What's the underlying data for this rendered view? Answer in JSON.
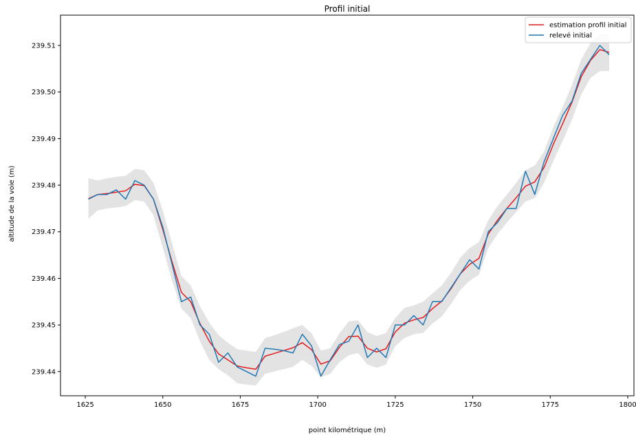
{
  "chart_data": {
    "type": "line",
    "title": "Profil initial",
    "xlabel": "point kilométrique (m)",
    "ylabel": "altitude de la voie (m)",
    "xlim": [
      1617,
      1802
    ],
    "ylim": [
      239.4348,
      239.5165
    ],
    "xticks": [
      1625,
      1650,
      1675,
      1700,
      1725,
      1750,
      1775,
      1800
    ],
    "yticks": [
      239.44,
      239.45,
      239.46,
      239.47,
      239.48,
      239.49,
      239.5,
      239.51
    ],
    "ytick_labels": [
      "239.44",
      "239.45",
      "239.46",
      "239.47",
      "239.48",
      "239.49",
      "239.50",
      "239.51"
    ],
    "grid": false,
    "legend_position": "top-right",
    "x": [
      1626,
      1629,
      1632,
      1635,
      1638,
      1641,
      1644,
      1647,
      1650,
      1653,
      1656,
      1659,
      1662,
      1665,
      1668,
      1671,
      1674,
      1677,
      1680,
      1683,
      1686,
      1689,
      1692,
      1695,
      1698,
      1701,
      1704,
      1707,
      1710,
      1713,
      1716,
      1719,
      1722,
      1725,
      1728,
      1731,
      1734,
      1737,
      1740,
      1743,
      1746,
      1749,
      1752,
      1755,
      1758,
      1761,
      1764,
      1767,
      1770,
      1773,
      1776,
      1779,
      1782,
      1785,
      1788,
      1791,
      1794
    ],
    "band": {
      "color": "#e3e3e3",
      "lower": [
        239.4728,
        239.4746,
        239.475,
        239.4752,
        239.4755,
        239.4768,
        239.4765,
        239.4735,
        239.4665,
        239.4595,
        239.4535,
        239.4515,
        239.4465,
        239.4425,
        239.4405,
        239.4392,
        239.4375,
        239.4372,
        239.437,
        239.4395,
        239.44,
        239.4405,
        239.441,
        239.4425,
        239.4412,
        239.4388,
        239.4395,
        239.442,
        239.4435,
        239.444,
        239.4415,
        239.4408,
        239.4415,
        239.4455,
        239.4472,
        239.448,
        239.4483,
        239.4503,
        239.4518,
        239.4545,
        239.4575,
        239.4595,
        239.4608,
        239.4665,
        239.4695,
        239.472,
        239.4742,
        239.4765,
        239.4772,
        239.4805,
        239.4852,
        239.4895,
        239.494,
        239.4995,
        239.503,
        239.5045,
        239.5045
      ],
      "upper": [
        239.4815,
        239.481,
        239.4815,
        239.4818,
        239.482,
        239.4835,
        239.4832,
        239.4805,
        239.4745,
        239.4675,
        239.4605,
        239.4585,
        239.454,
        239.4505,
        239.4478,
        239.4462,
        239.4448,
        239.4445,
        239.4442,
        239.4472,
        239.4478,
        239.4485,
        239.4493,
        239.45,
        239.4482,
        239.4445,
        239.445,
        239.4482,
        239.4508,
        239.451,
        239.4485,
        239.4476,
        239.4483,
        239.4515,
        239.4537,
        239.4542,
        239.455,
        239.4568,
        239.4585,
        239.4612,
        239.4645,
        239.4665,
        239.4678,
        239.4725,
        239.4755,
        239.478,
        239.4805,
        239.4832,
        239.4842,
        239.4872,
        239.4925,
        239.4968,
        239.5015,
        239.507,
        239.5105,
        239.5125,
        239.5125
      ]
    },
    "series": [
      {
        "name": "estimation profil initial",
        "color": "#e31a1c",
        "values": [
          239.4771,
          239.478,
          239.4782,
          239.4785,
          239.4788,
          239.4802,
          239.4799,
          239.477,
          239.4705,
          239.4635,
          239.457,
          239.455,
          239.4503,
          239.4465,
          239.4438,
          239.4425,
          239.4412,
          239.4408,
          239.4405,
          239.4433,
          239.4439,
          239.4445,
          239.4451,
          239.4462,
          239.4447,
          239.4416,
          239.4423,
          239.4452,
          239.4475,
          239.4476,
          239.445,
          239.4442,
          239.4449,
          239.4485,
          239.4504,
          239.4511,
          239.4516,
          239.4535,
          239.4551,
          239.4578,
          239.461,
          239.463,
          239.4643,
          239.4695,
          239.4725,
          239.475,
          239.4773,
          239.4798,
          239.4807,
          239.4838,
          239.4888,
          239.4932,
          239.4978,
          239.5033,
          239.5068,
          239.5091,
          239.5085
        ]
      },
      {
        "name": "relevé initial",
        "color": "#1f77b4",
        "values": [
          239.477,
          239.478,
          239.478,
          239.479,
          239.477,
          239.481,
          239.48,
          239.477,
          239.471,
          239.463,
          239.455,
          239.456,
          239.45,
          239.448,
          239.442,
          239.444,
          239.441,
          239.44,
          239.439,
          239.445,
          239.4448,
          239.4445,
          239.444,
          239.448,
          239.4455,
          239.439,
          239.4425,
          239.4458,
          239.4465,
          239.45,
          239.443,
          239.445,
          239.443,
          239.45,
          239.45,
          239.452,
          239.45,
          239.455,
          239.455,
          239.458,
          239.461,
          239.464,
          239.462,
          239.47,
          239.472,
          239.475,
          239.475,
          239.483,
          239.478,
          239.485,
          239.49,
          239.495,
          239.498,
          239.504,
          239.507,
          239.51,
          239.508
        ]
      }
    ]
  }
}
